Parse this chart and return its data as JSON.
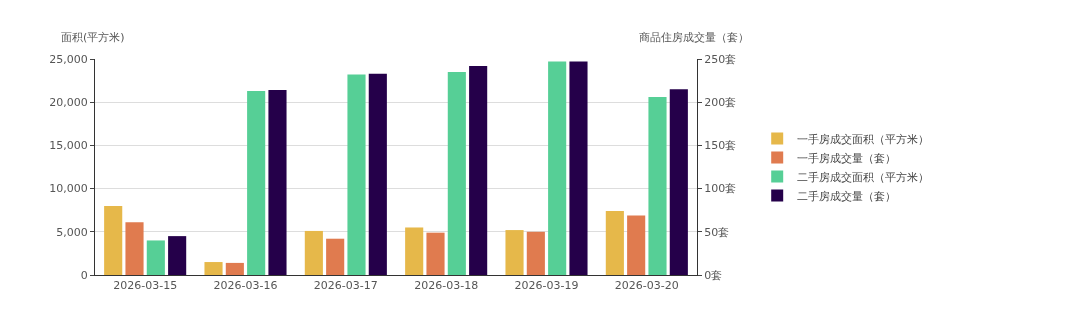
{
  "chart_data": {
    "type": "bar",
    "ylabel": "面积(平方米)",
    "y2label": "商品住房成交量（套）",
    "categories": [
      "2026-03-15",
      "2026-03-16",
      "2026-03-17",
      "2026-03-18",
      "2026-03-19",
      "2026-03-20"
    ],
    "series": [
      {
        "name": "一手房成交面积（平方米）",
        "color": "#e6b84a",
        "values": [
          8000,
          1500,
          5100,
          5500,
          5200,
          7400
        ]
      },
      {
        "name": "一手房成交量（套）",
        "color": "#e07b4f",
        "axis": "y2",
        "values": [
          61,
          14,
          42,
          49,
          50,
          69
        ]
      },
      {
        "name": "二手房成交面积（平方米）",
        "color": "#56cf96",
        "values": [
          4000,
          21300,
          23200,
          23500,
          24700,
          20600
        ]
      },
      {
        "name": "二手房成交量（套）",
        "color": "#25004a",
        "axis": "y2",
        "values": [
          45,
          214,
          233,
          242,
          247,
          215
        ]
      }
    ],
    "ylim": [
      0,
      25000
    ],
    "yticks": [
      0,
      {
        "value": 5000,
        "label": "5,000"
      },
      {
        "value": 10000,
        "label": "10,000"
      },
      {
        "value": 15000,
        "label": "15,000"
      },
      {
        "value": 20000,
        "label": "20,000"
      },
      {
        "value": 25000,
        "label": "25,000"
      }
    ],
    "y2lim": [
      0,
      250
    ],
    "y2ticks": [
      {
        "value": 0,
        "label": "0套"
      },
      {
        "value": 50,
        "label": "50套"
      },
      {
        "value": 100,
        "label": "100套"
      },
      {
        "value": 150,
        "label": "150套"
      },
      {
        "value": 200,
        "label": "200套"
      },
      {
        "value": 250,
        "label": "250套"
      }
    ],
    "grid": "y",
    "legend": "right"
  }
}
